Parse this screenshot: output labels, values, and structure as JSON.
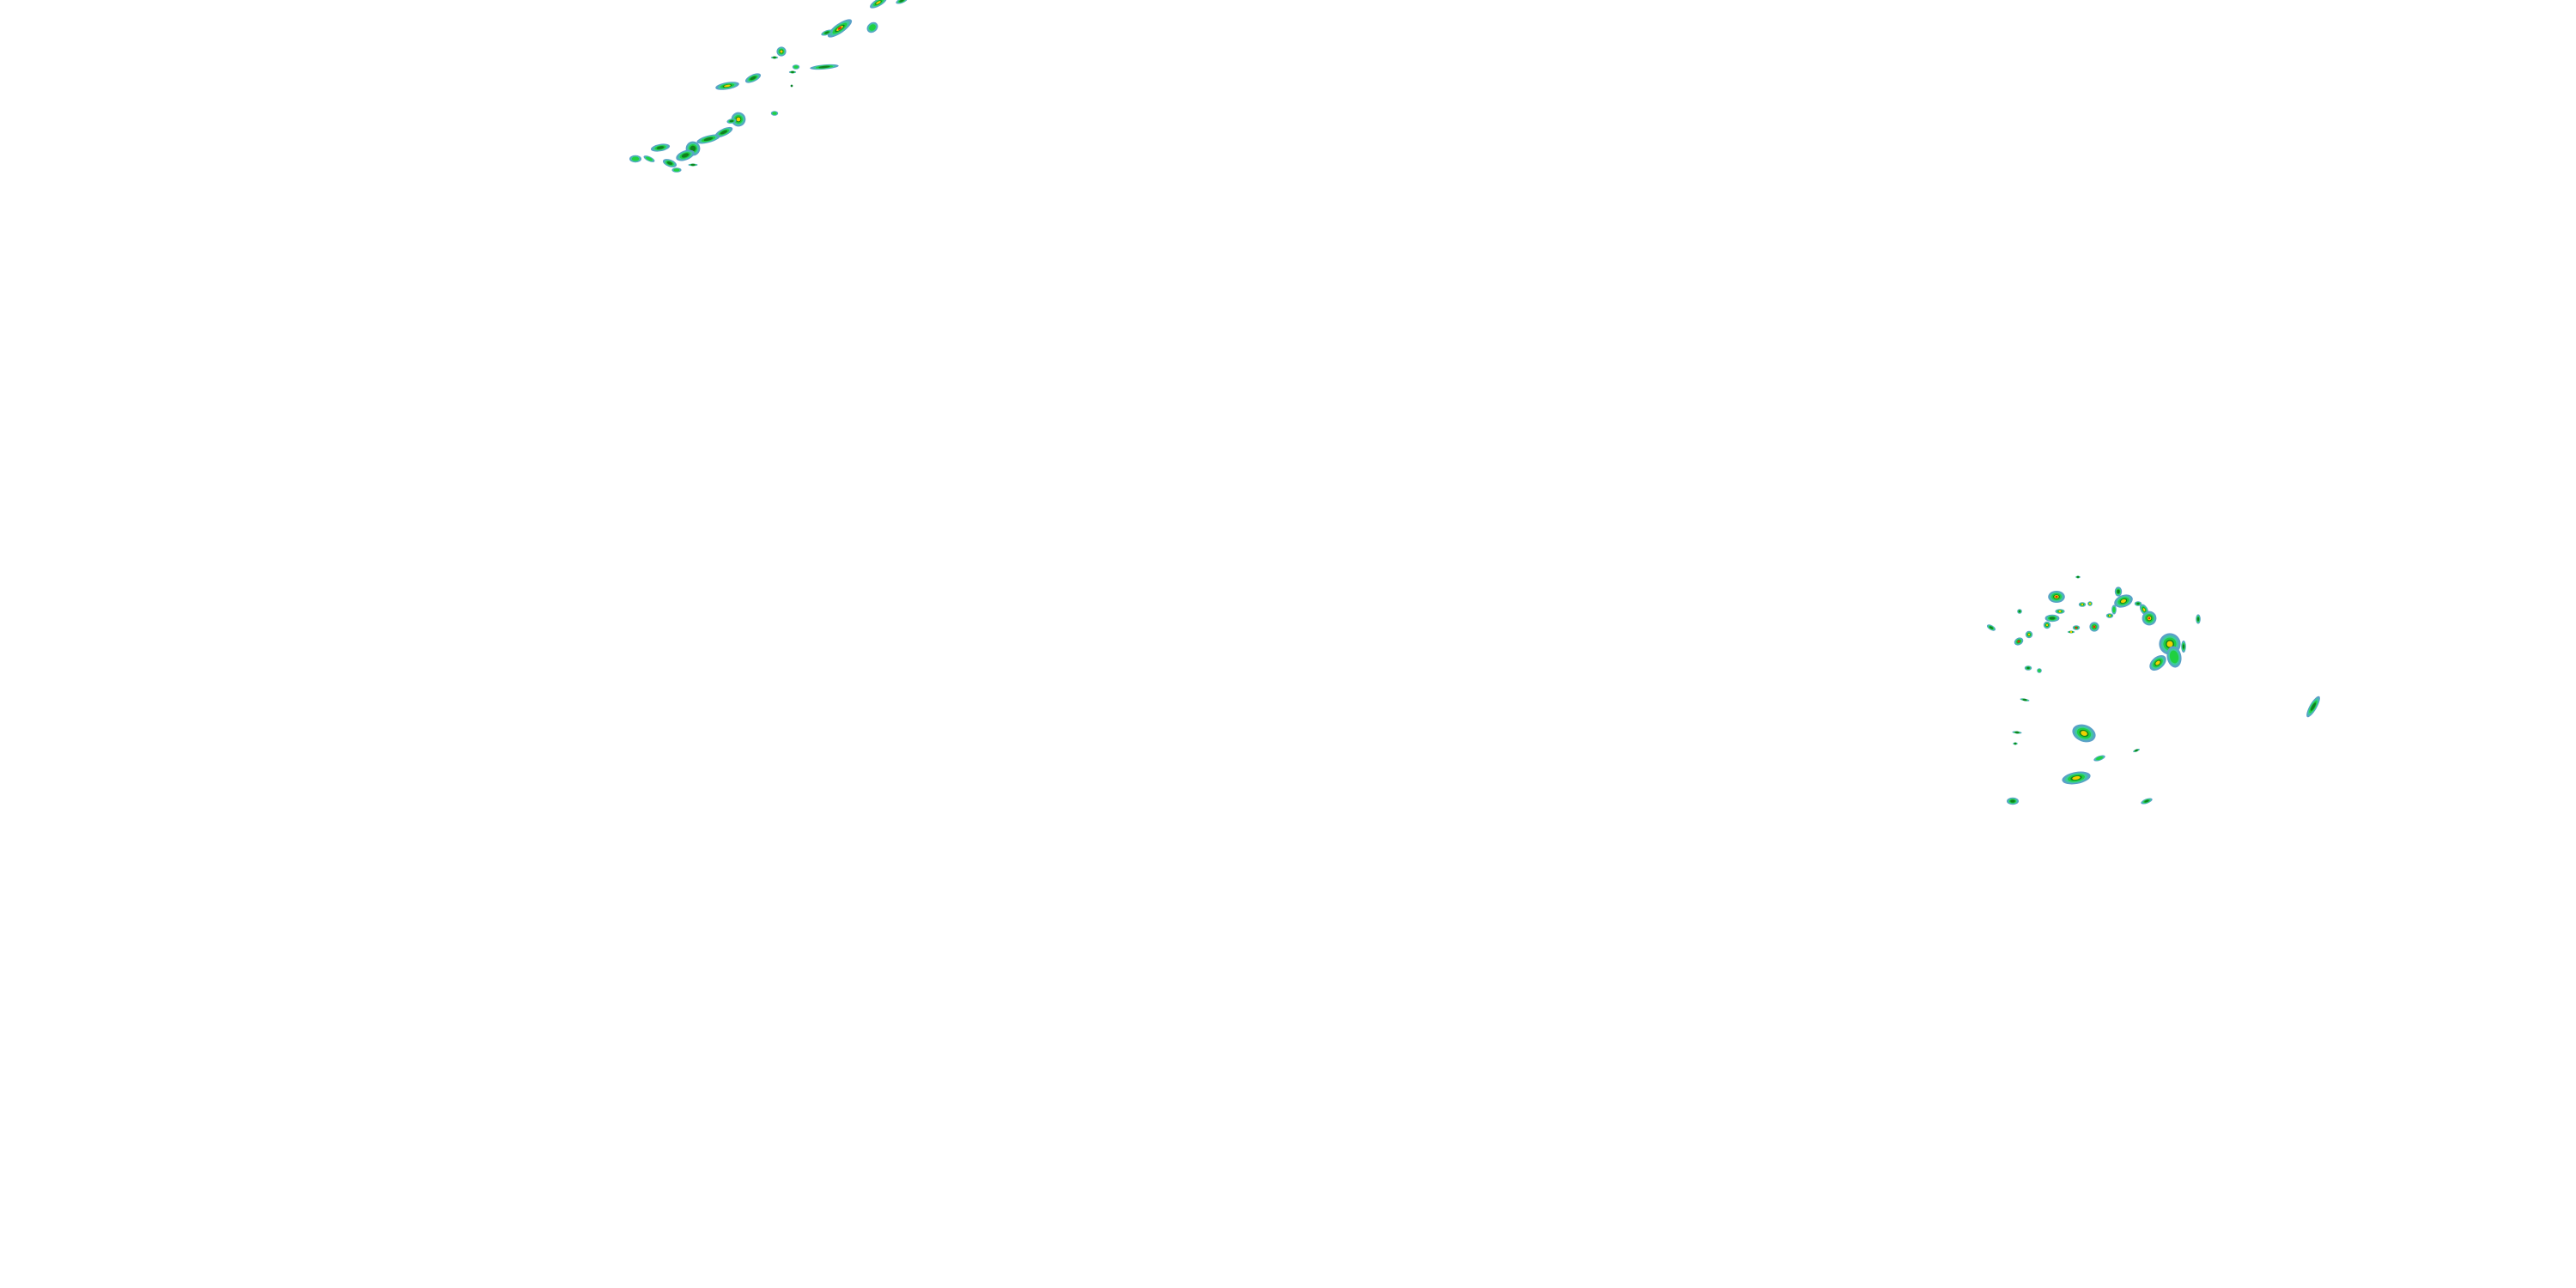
{
  "map": {
    "layer": "precipitation-radar-overlay",
    "background_color": "#ffffff",
    "palette": {
      "light": "#5aa0c8",
      "teal": "#40c8a0",
      "green": "#20d040",
      "dark_green": "#108020",
      "yellow": "#f0d000",
      "red": "#e02010"
    }
  }
}
